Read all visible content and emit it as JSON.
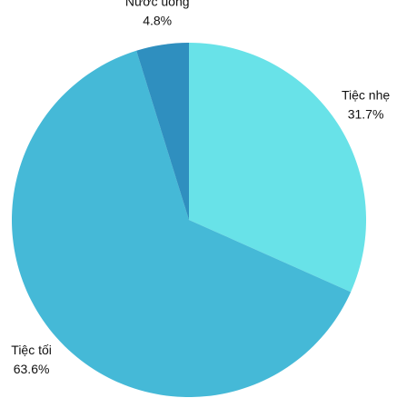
{
  "chart_data": {
    "type": "pie",
    "categories": [
      "Tiệc nhẹ",
      "Tiệc tối",
      "Nước uống"
    ],
    "values": [
      31.7,
      63.6,
      4.8
    ],
    "value_labels": [
      "31.7%",
      "63.6%",
      "4.8%"
    ],
    "colors": [
      "#68e2e8",
      "#45b9d7",
      "#2f8fbf"
    ]
  }
}
